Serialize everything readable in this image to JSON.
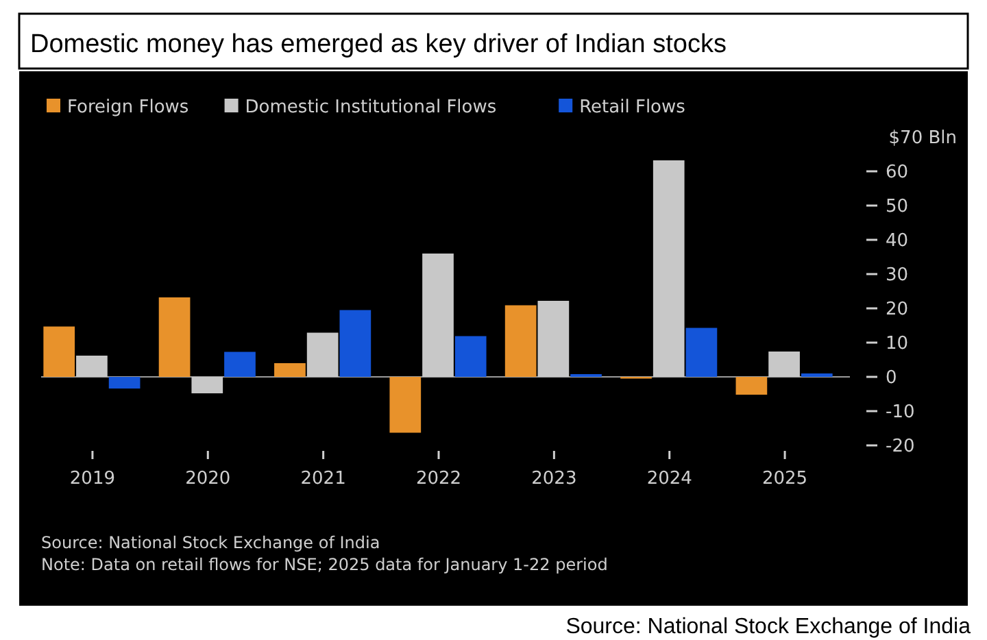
{
  "chart_data": {
    "type": "bar",
    "title": "Domestic money has emerged as key driver of Indian stocks",
    "categories": [
      "2019",
      "2020",
      "2021",
      "2022",
      "2023",
      "2024",
      "2025"
    ],
    "series": [
      {
        "name": "Foreign Flows",
        "color": "#e8922b",
        "values": [
          14.7,
          23.2,
          4.0,
          -16.3,
          20.9,
          -0.5,
          -5.2
        ]
      },
      {
        "name": "Domestic Institutional Flows",
        "color": "#c8c8c8",
        "values": [
          6.2,
          -4.8,
          12.9,
          36.0,
          22.2,
          63.2,
          7.4
        ]
      },
      {
        "name": "Retail Flows",
        "color": "#1455d9",
        "values": [
          -3.4,
          7.3,
          19.5,
          11.9,
          0.8,
          14.3,
          1.0
        ]
      }
    ],
    "ylim": [
      -20,
      70
    ],
    "yticks": [
      {
        "value": 70,
        "label": "$70 Bln"
      },
      60,
      50,
      40,
      30,
      20,
      10,
      0,
      -10,
      -20
    ],
    "legend": "top left",
    "annotations": [
      "Source: National Stock Exchange of India",
      "Note: Data on retail flows for NSE; 2025 data for January 1-22 period",
      "Source: National Stock Exchange of India"
    ]
  }
}
